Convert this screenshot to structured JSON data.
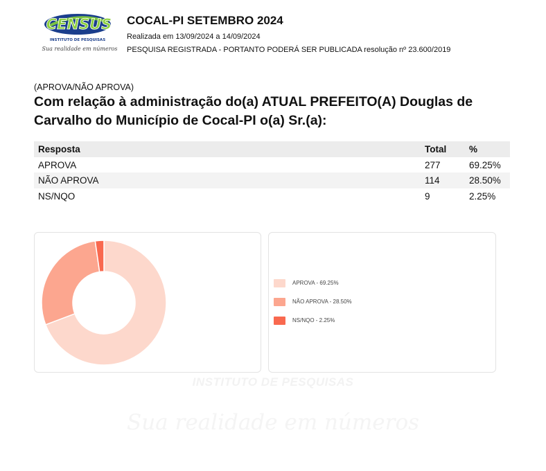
{
  "header": {
    "logo_text": "CENSUS",
    "logo_subtext": "INSTITUTO DE PESQUISAS",
    "logo_tagline": "Sua realidade em números",
    "title": "COCAL-PI SETEMBRO 2024",
    "date_line": "Realizada em 13/09/2024 a 14/09/2024",
    "registration_line": "PESQUISA REGISTRADA - PORTANTO PODERÁ SER PUBLICADA resolução nº 23.600/2019"
  },
  "question": {
    "tag": "(APROVA/NÃO APROVA)",
    "text": "Com relação à administração do(a) ATUAL PREFEITO(A) Douglas de Carvalho do Município de Cocal-PI o(a) Sr.(a):"
  },
  "table": {
    "headers": {
      "resposta": "Resposta",
      "total": "Total",
      "pct": "%"
    },
    "rows": [
      {
        "resposta": "APROVA",
        "total": "277",
        "pct": "69.25%"
      },
      {
        "resposta": "NÃO APROVA",
        "total": "114",
        "pct": "28.50%"
      },
      {
        "resposta": "NS/NQO",
        "total": "9",
        "pct": "2.25%"
      }
    ]
  },
  "chart_data": {
    "type": "pie",
    "donut": true,
    "categories": [
      "APROVA",
      "NÃO APROVA",
      "NS/NQO"
    ],
    "values": [
      69.25,
      28.5,
      2.25
    ],
    "colors": [
      "#fdd8cc",
      "#fca68f",
      "#f9694f"
    ],
    "legend": [
      "APROVA - 69.25%",
      "NÃO APROVA - 28.50%",
      "NS/NQO - 2.25%"
    ],
    "legend_placement": "right"
  },
  "watermark": {
    "line1": "INSTITUTO DE PESQUISAS",
    "line2": "Sua realidade em números"
  }
}
